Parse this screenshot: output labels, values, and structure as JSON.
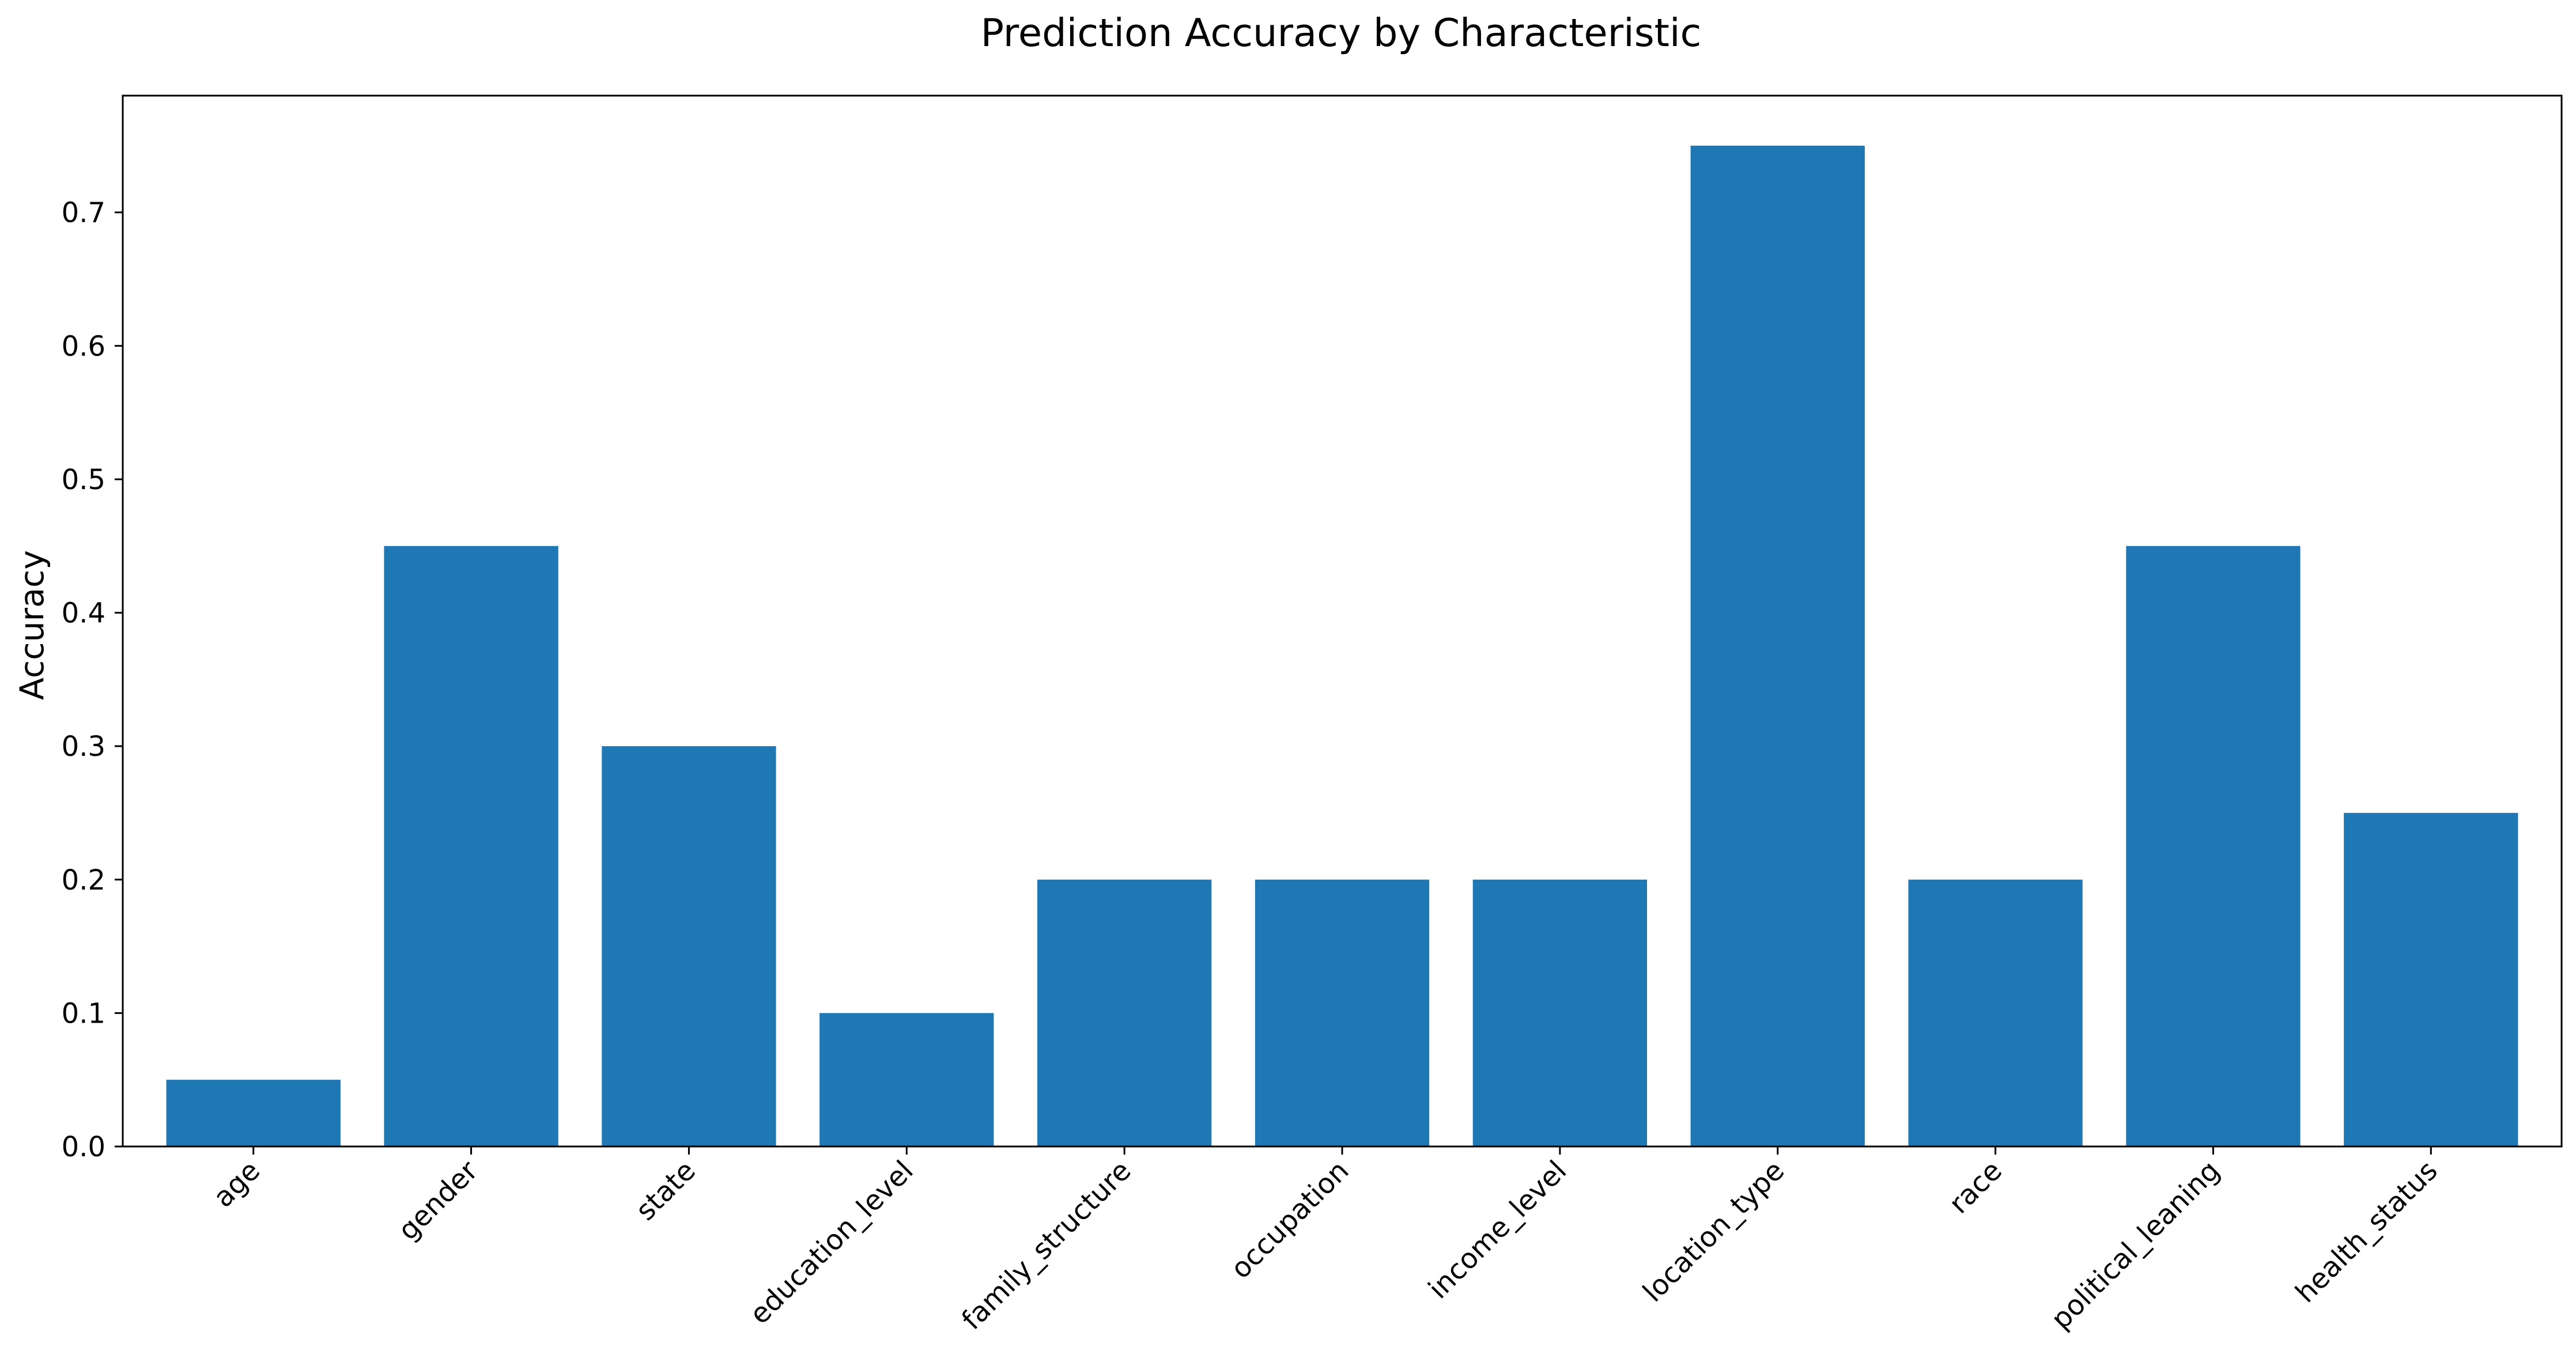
{
  "chart_data": {
    "type": "bar",
    "title": "Prediction Accuracy by Characteristic",
    "xlabel": "",
    "ylabel": "Accuracy",
    "categories": [
      "age",
      "gender",
      "state",
      "education_level",
      "family_structure",
      "occupation",
      "income_level",
      "location_type",
      "race",
      "political_leaning",
      "health_status"
    ],
    "values": [
      0.05,
      0.45,
      0.3,
      0.1,
      0.2,
      0.2,
      0.2,
      0.75,
      0.2,
      0.45,
      0.25
    ],
    "ylim": [
      0,
      0.7875
    ],
    "yticks": [
      "0.0",
      "0.1",
      "0.2",
      "0.3",
      "0.4",
      "0.5",
      "0.6",
      "0.7"
    ],
    "grid": false,
    "bar_color": "#1f77b4"
  }
}
